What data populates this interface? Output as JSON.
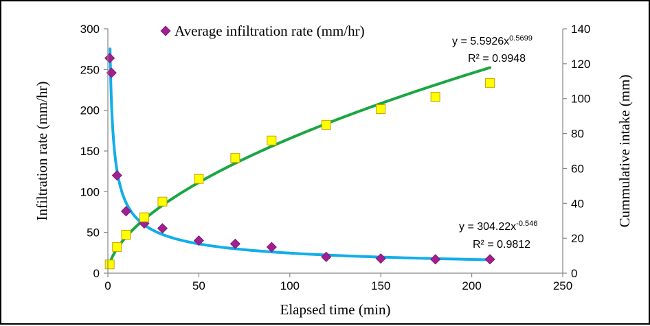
{
  "chart_data": {
    "type": "scatter",
    "title": "",
    "xlabel": "Elapsed time (min)",
    "ylabel_left": "Infiltration rate (mm/hr)",
    "ylabel_right": "Cummulative intake (mm)",
    "xlim": [
      0,
      250
    ],
    "ylim_left": [
      0,
      300
    ],
    "ylim_right": [
      0,
      140
    ],
    "x_ticks": [
      "0",
      "50",
      "100",
      "150",
      "200",
      "250"
    ],
    "y_left_ticks": [
      "0",
      "50",
      "100",
      "150",
      "200",
      "250",
      "300"
    ],
    "y_right_ticks": [
      "0",
      "20",
      "40",
      "60",
      "80",
      "100",
      "120",
      "140"
    ],
    "grid": false,
    "legend": {
      "placement": "top-center",
      "label": "Average infiltration rate (mm/hr)"
    },
    "series": [
      {
        "name": "Average infiltration rate (mm/hr)",
        "axis": "left",
        "marker": "diamond",
        "color": "#a0208f",
        "x": [
          1,
          2,
          5,
          10,
          20,
          30,
          50,
          70,
          90,
          120,
          150,
          180,
          210
        ],
        "y": [
          264,
          246,
          120,
          76,
          61,
          55,
          40,
          36,
          32,
          20,
          18,
          17,
          17
        ]
      },
      {
        "axis": "right",
        "marker": "square",
        "color": "#ffff00",
        "edge_color": "#c8a000",
        "x": [
          1,
          5,
          10,
          20,
          30,
          50,
          70,
          90,
          120,
          150,
          180,
          210
        ],
        "y": [
          5,
          15,
          22,
          32,
          41,
          54,
          66,
          76,
          85,
          94,
          101,
          109
        ]
      }
    ],
    "trendlines": [
      {
        "of_series": 0,
        "axis": "left",
        "type": "power",
        "a": 304.22,
        "b": -0.546,
        "x_range": [
          1.2,
          210
        ],
        "color": "#13aee8",
        "equation": {
          "prefix": "y = 304.22x",
          "exponent": "-0.546",
          "r2": "R² = 0.9812"
        }
      },
      {
        "of_series": 1,
        "axis": "right",
        "type": "power",
        "a": 5.5926,
        "b": 0.5699,
        "x_range": [
          1,
          210
        ],
        "color": "#1aa642",
        "equation": {
          "prefix": "y = 5.5926x",
          "exponent": "0.5699",
          "r2": "R² = 0.9948"
        }
      }
    ]
  }
}
